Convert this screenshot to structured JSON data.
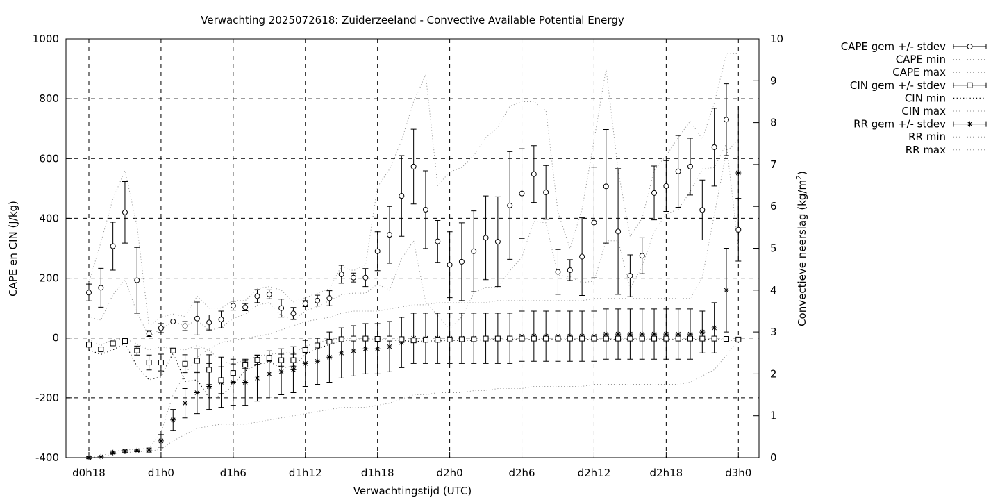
{
  "chart_data": {
    "type": "line",
    "title": "Verwachting 2025072618: Zuiderzeeland - Convective Available Potential Energy",
    "xlabel": "Verwachtingstijd (UTC)",
    "ylabel": "CAPE en CIN (J/kg)",
    "y2label_main": "Convectieve neerslag (kg/m",
    "y2label_sup": "2",
    "y2label_end": ")",
    "x_start_hour": 18,
    "x_step_hours": 1,
    "xlim": [
      "d0h16",
      "d3h1"
    ],
    "ylim": [
      -400,
      1000
    ],
    "y2lim": [
      0,
      10
    ],
    "grid": true,
    "legend_position": "outside-right",
    "xticks": [
      "d0h18",
      "d1h0",
      "d1h6",
      "d1h12",
      "d1h18",
      "d2h0",
      "d2h6",
      "d2h12",
      "d2h18",
      "d3h0"
    ],
    "yticks": [
      "1000",
      "800",
      "600",
      "400",
      "200",
      "0",
      "-200",
      "-400"
    ],
    "y2ticks": [
      "10",
      "9",
      "8",
      "7",
      "6",
      "5",
      "4",
      "3",
      "2",
      "1",
      "0"
    ],
    "legend": [
      {
        "label": "CAPE gem +/- stdev",
        "style": "errorbar",
        "marker": "circle"
      },
      {
        "label": "CAPE min",
        "style": "dotted-gray"
      },
      {
        "label": "CAPE max",
        "style": "dotted-gray"
      },
      {
        "label": "CIN gem +/- stdev",
        "style": "errorbar",
        "marker": "square"
      },
      {
        "label": "CIN min",
        "style": "dotted-black"
      },
      {
        "label": "CIN max",
        "style": "dotted-gray"
      },
      {
        "label": "RR gem +/- stdev",
        "style": "errorbar",
        "marker": "star"
      },
      {
        "label": "RR min",
        "style": "dotted-gray"
      },
      {
        "label": "RR max",
        "style": "dotted-gray"
      }
    ],
    "series": {
      "cape_mean": [
        152,
        168,
        307,
        420,
        193,
        15,
        33,
        55,
        40,
        65,
        52,
        62,
        108,
        103,
        140,
        146,
        100,
        82,
        115,
        125,
        133,
        213,
        202,
        202,
        290,
        345,
        475,
        573,
        429,
        323,
        245,
        255,
        290,
        335,
        322,
        443,
        483,
        548,
        487,
        221,
        227,
        272,
        386,
        507,
        356,
        208,
        275,
        485,
        508,
        557,
        573,
        428,
        638,
        730,
        362
      ],
      "cape_sd": [
        28,
        65,
        80,
        103,
        110,
        10,
        15,
        8,
        15,
        55,
        25,
        28,
        15,
        12,
        22,
        15,
        30,
        20,
        10,
        18,
        25,
        30,
        15,
        30,
        65,
        95,
        135,
        125,
        130,
        70,
        110,
        130,
        135,
        140,
        150,
        180,
        150,
        95,
        90,
        75,
        35,
        130,
        185,
        190,
        210,
        70,
        60,
        90,
        85,
        120,
        95,
        100,
        130,
        120,
        105
      ],
      "cape_min": [
        70,
        60,
        145,
        195,
        85,
        5,
        30,
        55,
        40,
        60,
        25,
        35,
        65,
        80,
        110,
        118,
        75,
        60,
        90,
        105,
        125,
        145,
        150,
        150,
        180,
        160,
        265,
        325,
        120,
        75,
        30,
        70,
        150,
        170,
        170,
        225,
        270,
        390,
        385,
        210,
        205,
        185,
        190,
        325,
        325,
        165,
        240,
        355,
        415,
        430,
        490,
        565,
        570,
        650,
        300
      ],
      "cape_max": [
        185,
        320,
        465,
        560,
        375,
        40,
        70,
        80,
        72,
        140,
        100,
        100,
        125,
        125,
        165,
        172,
        160,
        120,
        135,
        150,
        165,
        240,
        225,
        245,
        505,
        565,
        660,
        790,
        880,
        510,
        555,
        570,
        610,
        670,
        705,
        775,
        790,
        790,
        760,
        420,
        300,
        430,
        660,
        900,
        560,
        340,
        400,
        560,
        610,
        670,
        725,
        665,
        785,
        950,
        950
      ],
      "cin_mean": [
        -22,
        -38,
        -18,
        -10,
        -42,
        -82,
        -82,
        -42,
        -86,
        -76,
        -106,
        -141,
        -117,
        -89,
        -73,
        -68,
        -74,
        -74,
        -40,
        -25,
        -12,
        -4,
        -2,
        -2,
        -3,
        -2,
        -4,
        -8,
        -6,
        -6,
        -5,
        -4,
        -4,
        -2,
        -2,
        -2,
        -2,
        -2,
        -2,
        -2,
        -2,
        -2,
        -2,
        -2,
        -2,
        -2,
        -2,
        -2,
        -2,
        -2,
        -2,
        -2,
        -2,
        -3,
        -5
      ],
      "cin_sd": [
        8,
        6,
        8,
        5,
        15,
        25,
        28,
        8,
        30,
        40,
        50,
        45,
        30,
        12,
        15,
        10,
        20,
        20,
        8,
        6,
        4,
        2,
        1,
        1,
        1,
        1,
        2,
        3,
        3,
        3,
        2,
        2,
        2,
        1,
        1,
        1,
        1,
        1,
        1,
        1,
        1,
        1,
        1,
        1,
        1,
        1,
        1,
        1,
        1,
        1,
        1,
        1,
        1,
        1,
        2
      ],
      "cin_min": [
        -40,
        -55,
        -40,
        -18,
        -95,
        -140,
        -130,
        -50,
        -145,
        -140,
        -200,
        -195,
        -155,
        -110,
        -88,
        -80,
        -98,
        -96,
        -55,
        -35,
        -22,
        -10,
        -6,
        -6,
        -6,
        -6,
        -8,
        -12,
        -10,
        -10,
        -8,
        -8,
        -8,
        -5,
        -5,
        -5,
        -5,
        -5,
        -5,
        -5,
        -5,
        -5,
        -5,
        -5,
        -5,
        -5,
        -5,
        -5,
        -5,
        -5,
        -5,
        -5,
        -5,
        -6,
        -8
      ],
      "cin_max": [
        -5,
        -25,
        -5,
        -2,
        -20,
        -40,
        -30,
        -35,
        -40,
        -25,
        -40,
        -80,
        -85,
        -75,
        -60,
        -55,
        -50,
        -50,
        -28,
        -15,
        -6,
        0,
        0,
        0,
        0,
        0,
        0,
        -2,
        -1,
        -1,
        -1,
        0,
        0,
        0,
        0,
        0,
        0,
        0,
        0,
        0,
        0,
        0,
        0,
        0,
        0,
        0,
        0,
        0,
        0,
        0,
        0,
        0,
        0,
        0,
        0
      ],
      "rr_mean": [
        0,
        0.02,
        0.12,
        0.15,
        0.17,
        0.18,
        0.4,
        0.9,
        1.3,
        1.55,
        1.7,
        1.8,
        1.8,
        1.8,
        1.9,
        2.0,
        2.05,
        2.1,
        2.25,
        2.3,
        2.4,
        2.5,
        2.55,
        2.6,
        2.6,
        2.65,
        2.75,
        2.85,
        2.85,
        2.85,
        2.85,
        2.85,
        2.85,
        2.85,
        2.85,
        2.85,
        2.9,
        2.9,
        2.9,
        2.9,
        2.9,
        2.9,
        2.9,
        2.95,
        2.95,
        2.95,
        2.95,
        2.95,
        2.95,
        2.95,
        2.95,
        3.0,
        3.1,
        4.0,
        6.8
      ],
      "rr_sd": [
        0.02,
        0.02,
        0.03,
        0.03,
        0.03,
        0.05,
        0.15,
        0.25,
        0.35,
        0.5,
        0.55,
        0.6,
        0.55,
        0.55,
        0.55,
        0.55,
        0.55,
        0.55,
        0.55,
        0.55,
        0.6,
        0.6,
        0.6,
        0.6,
        0.6,
        0.6,
        0.6,
        0.6,
        0.6,
        0.6,
        0.6,
        0.6,
        0.6,
        0.6,
        0.6,
        0.6,
        0.6,
        0.6,
        0.6,
        0.6,
        0.6,
        0.6,
        0.6,
        0.6,
        0.6,
        0.6,
        0.6,
        0.6,
        0.6,
        0.6,
        0.6,
        0.5,
        0.6,
        1.0,
        1.6
      ],
      "rr_min": [
        0,
        0,
        0.1,
        0.12,
        0.14,
        0.15,
        0.2,
        0.4,
        0.55,
        0.7,
        0.75,
        0.8,
        0.8,
        0.8,
        0.85,
        0.9,
        0.95,
        1.0,
        1.05,
        1.1,
        1.15,
        1.2,
        1.2,
        1.2,
        1.25,
        1.3,
        1.4,
        1.5,
        1.5,
        1.55,
        1.55,
        1.55,
        1.6,
        1.6,
        1.65,
        1.65,
        1.65,
        1.7,
        1.7,
        1.7,
        1.7,
        1.7,
        1.75,
        1.75,
        1.75,
        1.75,
        1.75,
        1.75,
        1.75,
        1.75,
        1.8,
        1.95,
        2.1,
        2.45,
        2.8
      ],
      "rr_max": [
        0,
        0.03,
        0.15,
        0.18,
        0.2,
        0.22,
        0.6,
        1.5,
        2.0,
        2.4,
        2.6,
        2.75,
        2.8,
        2.85,
        2.9,
        2.95,
        3.05,
        3.15,
        3.25,
        3.3,
        3.35,
        3.45,
        3.5,
        3.5,
        3.5,
        3.55,
        3.6,
        3.65,
        3.65,
        3.7,
        3.7,
        3.7,
        3.7,
        3.7,
        3.75,
        3.75,
        3.75,
        3.75,
        3.75,
        3.75,
        3.75,
        3.75,
        3.8,
        3.8,
        3.8,
        3.8,
        3.8,
        3.8,
        3.8,
        3.8,
        3.8,
        4.3,
        5.8,
        7.3,
        7.6
      ]
    }
  }
}
